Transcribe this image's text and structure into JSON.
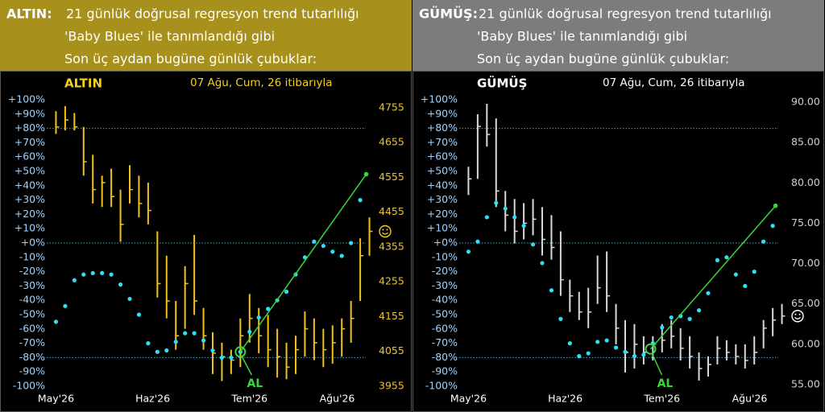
{
  "chart_data": [
    {
      "type": "ohlc",
      "header_label": "ALTIN:",
      "header_lines": [
        "21 günlük doğrusal regresyon trend tutarlılığı",
        "'Baby Blues' ile tanımlandığı gibi",
        "Son üç aydan bugüne günlük çubuklar:"
      ],
      "header_color": "#a8901c",
      "title": "ALTIN",
      "subtitle": "07 Ağu, Cum, 26 itibarıyla",
      "title_color": "#f5d020",
      "bar_color": "#f2c21b",
      "right_tick_color": "#f2c21b",
      "dot_color": "#2ee0f5",
      "line_color": "#3ad63a",
      "annotation": "AL",
      "xlim": [
        -2,
        70
      ],
      "xticks": [
        {
          "value": 0,
          "label": "May'26"
        },
        {
          "value": 21,
          "label": "Haz'26"
        },
        {
          "value": 42,
          "label": "Tem'26"
        },
        {
          "value": 61,
          "label": "Ağu'26"
        }
      ],
      "ylim": [
        -100,
        100
      ],
      "yticks": [
        {
          "value": 100,
          "label": "+100%"
        },
        {
          "value": 90,
          "label": "+90%"
        },
        {
          "value": 80,
          "label": "+80%"
        },
        {
          "value": 70,
          "label": "+70%"
        },
        {
          "value": 60,
          "label": "+60%"
        },
        {
          "value": 50,
          "label": "+50%"
        },
        {
          "value": 40,
          "label": "+40%"
        },
        {
          "value": 30,
          "label": "+30%"
        },
        {
          "value": 20,
          "label": "+20%"
        },
        {
          "value": 10,
          "label": "+10%"
        },
        {
          "value": 0,
          "label": "+0%"
        },
        {
          "value": -10,
          "label": "-10%"
        },
        {
          "value": -20,
          "label": "-20%"
        },
        {
          "value": -30,
          "label": "-30%"
        },
        {
          "value": -40,
          "label": "-40%"
        },
        {
          "value": -50,
          "label": "-50%"
        },
        {
          "value": -60,
          "label": "-60%"
        },
        {
          "value": -70,
          "label": "-70%"
        },
        {
          "value": -80,
          "label": "-80%"
        },
        {
          "value": -90,
          "label": "-90%"
        },
        {
          "value": -100,
          "label": "-100%"
        }
      ],
      "y2lim": [
        3955,
        4778
      ],
      "y2ticks": [
        4755,
        4655,
        4555,
        4455,
        4355,
        4255,
        4155,
        4055,
        3955
      ],
      "ref_lines": [
        80,
        0,
        -80
      ],
      "x": [
        0,
        2,
        4,
        6,
        8,
        10,
        12,
        14,
        16,
        18,
        20,
        22,
        24,
        26,
        28,
        30,
        32,
        34,
        36,
        38,
        40,
        42,
        44,
        46,
        48,
        50,
        52,
        54,
        56,
        58,
        60,
        62,
        64,
        66,
        68
      ],
      "high": [
        4745,
        4760,
        4740,
        4700,
        4620,
        4560,
        4580,
        4520,
        4590,
        4560,
        4540,
        4400,
        4330,
        4200,
        4300,
        4390,
        4180,
        4110,
        4080,
        4060,
        4150,
        4220,
        4180,
        4160,
        4120,
        4080,
        4100,
        4170,
        4150,
        4120,
        4130,
        4150,
        4200,
        4380,
        4440
      ],
      "low": [
        4680,
        4690,
        4690,
        4560,
        4480,
        4470,
        4470,
        4370,
        4480,
        4440,
        4420,
        4210,
        4150,
        4060,
        4120,
        4160,
        4060,
        3990,
        3970,
        3990,
        4010,
        4080,
        4050,
        4010,
        3980,
        3975,
        3990,
        4040,
        4030,
        4010,
        4020,
        4040,
        4080,
        4200,
        4330
      ],
      "close": [
        4700,
        4720,
        4700,
        4600,
        4520,
        4540,
        4500,
        4420,
        4520,
        4480,
        4460,
        4250,
        4200,
        4100,
        4250,
        4200,
        4100,
        4050,
        4040,
        4030,
        4100,
        4150,
        4100,
        4060,
        4040,
        4010,
        4060,
        4120,
        4080,
        4060,
        4080,
        4120,
        4150,
        4330,
        4400
      ],
      "dots": [
        -55,
        -44,
        -26,
        -22,
        -21,
        -21,
        -22,
        -29,
        -39,
        -50,
        -70,
        -76,
        -75,
        -69,
        -63,
        -63,
        -68,
        -75,
        -80,
        -80,
        -76,
        -62,
        -52,
        -46,
        -40,
        -34,
        -22,
        -10,
        1,
        -2,
        -6,
        -9,
        0,
        30,
        null
      ],
      "trend": {
        "x": [
          40,
          67.3
        ],
        "values": [
          -76,
          48
        ]
      }
    },
    {
      "type": "ohlc",
      "header_label": "GÜMÜŞ:",
      "header_lines": [
        "21 günlük doğrusal regresyon trend tutarlılığı",
        "'Baby Blues' ile tanımlandığı gibi",
        "Son üç aydan bugüne günlük çubuklar:"
      ],
      "header_color": "#7c7c7c",
      "title": "GÜMÜŞ",
      "subtitle": "07 Ağu, Cum, 26 itibarıyla",
      "title_color": "#ffffff",
      "bar_color": "#d9d9d9",
      "right_tick_color": "#cfcfcf",
      "dot_color": "#2ee0f5",
      "line_color": "#3ad63a",
      "annotation": "AL",
      "xlim": [
        -2,
        70
      ],
      "xticks": [
        {
          "value": 0,
          "label": "May'26"
        },
        {
          "value": 21,
          "label": "Haz'26"
        },
        {
          "value": 42,
          "label": "Tem'26"
        },
        {
          "value": 61,
          "label": "Ağu'26"
        }
      ],
      "ylim": [
        -100,
        100
      ],
      "yticks": [
        {
          "value": 100,
          "label": "+100%"
        },
        {
          "value": 90,
          "label": "+90%"
        },
        {
          "value": 80,
          "label": "+80%"
        },
        {
          "value": 70,
          "label": "+70%"
        },
        {
          "value": 60,
          "label": "+60%"
        },
        {
          "value": 50,
          "label": "+50%"
        },
        {
          "value": 40,
          "label": "+40%"
        },
        {
          "value": 30,
          "label": "+30%"
        },
        {
          "value": 20,
          "label": "+20%"
        },
        {
          "value": 10,
          "label": "+10%"
        },
        {
          "value": 0,
          "label": "+0%"
        },
        {
          "value": -10,
          "label": "-10%"
        },
        {
          "value": -20,
          "label": "-20%"
        },
        {
          "value": -30,
          "label": "-30%"
        },
        {
          "value": -40,
          "label": "-40%"
        },
        {
          "value": -50,
          "label": "-50%"
        },
        {
          "value": -60,
          "label": "-60%"
        },
        {
          "value": -70,
          "label": "-70%"
        },
        {
          "value": -80,
          "label": "-80%"
        },
        {
          "value": -90,
          "label": "-90%"
        },
        {
          "value": -100,
          "label": "-100%"
        }
      ],
      "y2lim": [
        54.8,
        90.3
      ],
      "y2ticks": [
        {
          "value": 90,
          "label": "90.00"
        },
        {
          "value": 85,
          "label": "85.00"
        },
        {
          "value": 80,
          "label": "80.00"
        },
        {
          "value": 75,
          "label": "75.00"
        },
        {
          "value": 70,
          "label": "70.00"
        },
        {
          "value": 65,
          "label": "65.00"
        },
        {
          "value": 60,
          "label": "60.00"
        },
        {
          "value": 55,
          "label": "55.00"
        }
      ],
      "ref_lines": [
        80,
        0,
        -80
      ],
      "x": [
        0,
        2,
        4,
        6,
        8,
        10,
        12,
        14,
        16,
        18,
        20,
        22,
        24,
        26,
        28,
        30,
        32,
        34,
        36,
        38,
        40,
        42,
        44,
        46,
        48,
        50,
        52,
        54,
        56,
        58,
        60,
        62,
        64,
        66,
        68
      ],
      "high": [
        82,
        88.5,
        89.8,
        88,
        79,
        78,
        77.5,
        78,
        77,
        76,
        74,
        68,
        66.5,
        67,
        71,
        71.5,
        65,
        63,
        62.5,
        61,
        61,
        62.5,
        63,
        62,
        61,
        59,
        58.5,
        61,
        60.5,
        60,
        60,
        61,
        63,
        64.5,
        65
      ],
      "low": [
        78.5,
        80.5,
        84.5,
        77,
        74,
        72.5,
        73,
        73.5,
        71,
        70.5,
        66,
        64,
        63,
        62,
        65,
        64,
        60,
        56.5,
        57,
        57.5,
        58,
        59,
        59.5,
        58,
        57,
        55.5,
        56,
        57.5,
        58,
        57.5,
        57,
        57.5,
        59.5,
        61,
        62.5
      ],
      "close": [
        80.5,
        87,
        86,
        79,
        76,
        74,
        75,
        75.5,
        73,
        72,
        68,
        66,
        64,
        64,
        67,
        66,
        62,
        59,
        60,
        59,
        60,
        60.5,
        61,
        59.5,
        58.5,
        57,
        57.5,
        59.5,
        59,
        58.5,
        58,
        59,
        62,
        63,
        63.5
      ],
      "dots": [
        -6,
        1,
        18,
        28,
        24,
        18,
        12,
        -1,
        -14,
        -33,
        -53,
        -70,
        -79,
        -77,
        -69,
        -68,
        -73,
        -76,
        -79,
        -78,
        -70,
        -59,
        -52,
        -51,
        -53,
        -47,
        -35,
        -12,
        -10,
        -22,
        -30,
        -20,
        1,
        12,
        null
      ],
      "trend": {
        "x": [
          39.5,
          66.6
        ],
        "values": [
          -74,
          26
        ]
      }
    }
  ]
}
